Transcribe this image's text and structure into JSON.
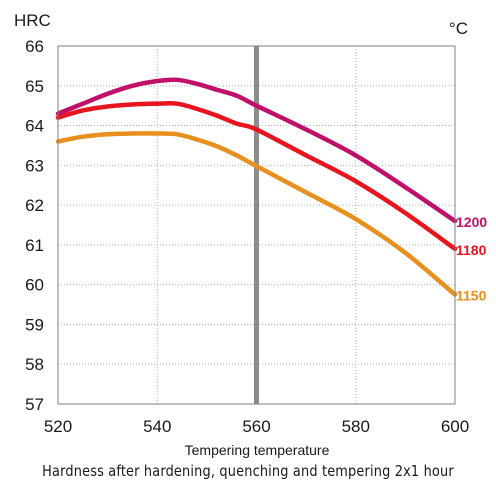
{
  "chart_data": {
    "type": "line",
    "ylabel": "HRC",
    "unit": "°C",
    "xlabel": "Tempering temperature",
    "caption": "Hardness after hardening, quenching and tempering  2x1 hour",
    "xlim": [
      520,
      600
    ],
    "ylim": [
      57,
      66
    ],
    "x_ticks": [
      "520",
      "540",
      "560",
      "580",
      "600"
    ],
    "y_ticks": [
      "57",
      "58",
      "59",
      "60",
      "61",
      "62",
      "63",
      "64",
      "65",
      "66"
    ],
    "grid": true,
    "reference_line_x": 560,
    "series": [
      {
        "name": "1200",
        "color": "#c0106a",
        "x": [
          520,
          525,
          530,
          535,
          540,
          544,
          548,
          552,
          556,
          560,
          570,
          580,
          590,
          600
        ],
        "y": [
          64.3,
          64.55,
          64.8,
          65.0,
          65.12,
          65.15,
          65.05,
          64.9,
          64.75,
          64.5,
          63.9,
          63.25,
          62.45,
          61.6
        ]
      },
      {
        "name": "1180",
        "color": "#e8141e",
        "x": [
          520,
          525,
          530,
          535,
          540,
          544,
          548,
          552,
          556,
          560,
          570,
          580,
          590,
          600
        ],
        "y": [
          64.2,
          64.38,
          64.48,
          64.53,
          64.55,
          64.55,
          64.42,
          64.25,
          64.05,
          63.9,
          63.25,
          62.6,
          61.8,
          60.9
        ]
      },
      {
        "name": "1150",
        "color": "#e8901e",
        "x": [
          520,
          525,
          530,
          535,
          540,
          544,
          548,
          552,
          556,
          560,
          570,
          580,
          590,
          600
        ],
        "y": [
          63.6,
          63.72,
          63.78,
          63.8,
          63.8,
          63.78,
          63.65,
          63.48,
          63.25,
          62.98,
          62.32,
          61.65,
          60.8,
          59.75
        ]
      }
    ]
  }
}
